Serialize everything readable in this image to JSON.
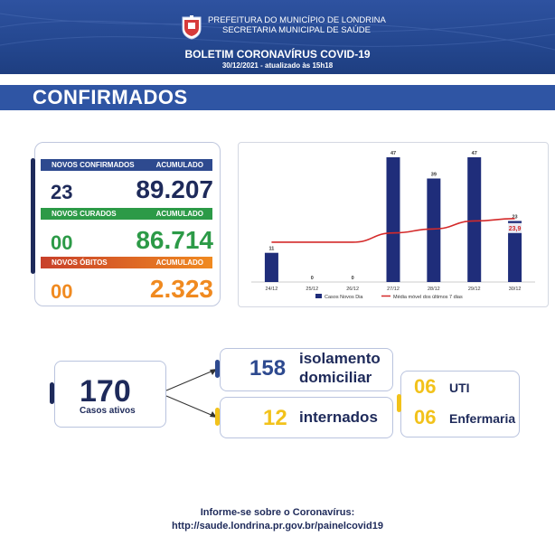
{
  "header": {
    "prefeitura": "PREFEITURA DO MUNICÍPIO DE LONDRINA",
    "secretaria": "SECRETARIA MUNICIPAL DE SAÚDE",
    "title": "BOLETIM CORONAVÍRUS COVID-19",
    "date": "30/12/2021 - atualizado às 15h18"
  },
  "section_title": "CONFIRMADOS",
  "stats": {
    "confirmados": {
      "label": "NOVOS CONFIRMADOS",
      "acc_label": "ACUMULADO",
      "new": "23",
      "total": "89.207",
      "color": "#2e4a8f"
    },
    "curados": {
      "label": "NOVOS CURADOS",
      "acc_label": "ACUMULADO",
      "new": "00",
      "total": "86.714",
      "color": "#2c9a47"
    },
    "obitos": {
      "label": "NOVOS ÓBITOS",
      "acc_label": "ACUMULADO",
      "new": "00",
      "total": "2.323",
      "color": "#f08a20"
    }
  },
  "chart_data": {
    "type": "bar",
    "categories": [
      "24/12",
      "25/12",
      "26/12",
      "27/12",
      "28/12",
      "29/12",
      "30/12"
    ],
    "series": [
      {
        "name": "Casos Novos Dia",
        "type": "bar",
        "values": [
          11,
          0,
          0,
          47,
          39,
          47,
          23
        ],
        "color": "#1f2d7a"
      },
      {
        "name": "Média móvel dos últimos 7 dias",
        "type": "line",
        "values": [
          15,
          15,
          15,
          18.5,
          20,
          23,
          23.9
        ],
        "color": "#d42a2a"
      }
    ],
    "data_labels": [
      "11",
      "0",
      "0",
      "47",
      "39",
      "47",
      "23"
    ],
    "line_end_label": "23,9",
    "ylim": [
      0,
      47
    ]
  },
  "active": {
    "count": "170",
    "label": "Casos ativos"
  },
  "isolamento": {
    "count": "158",
    "label_line1": "isolamento",
    "label_line2": "domiciliar"
  },
  "internados": {
    "count": "12",
    "label": "internados"
  },
  "internados_detail": {
    "uti_count": "06",
    "uti_label": "UTI",
    "enf_count": "06",
    "enf_label": "Enfermaria"
  },
  "footer": {
    "line1": "Informe-se sobre o Coronavírus:",
    "line2": "http://saude.londrina.pr.gov.br/painelcovid19"
  },
  "colors": {
    "navy": "#1e2a5a",
    "header_blue": "#2e52a0",
    "yellow": "#f2c21b",
    "green": "#2c9a47",
    "orange": "#f08a20",
    "red": "#d42a2a"
  }
}
